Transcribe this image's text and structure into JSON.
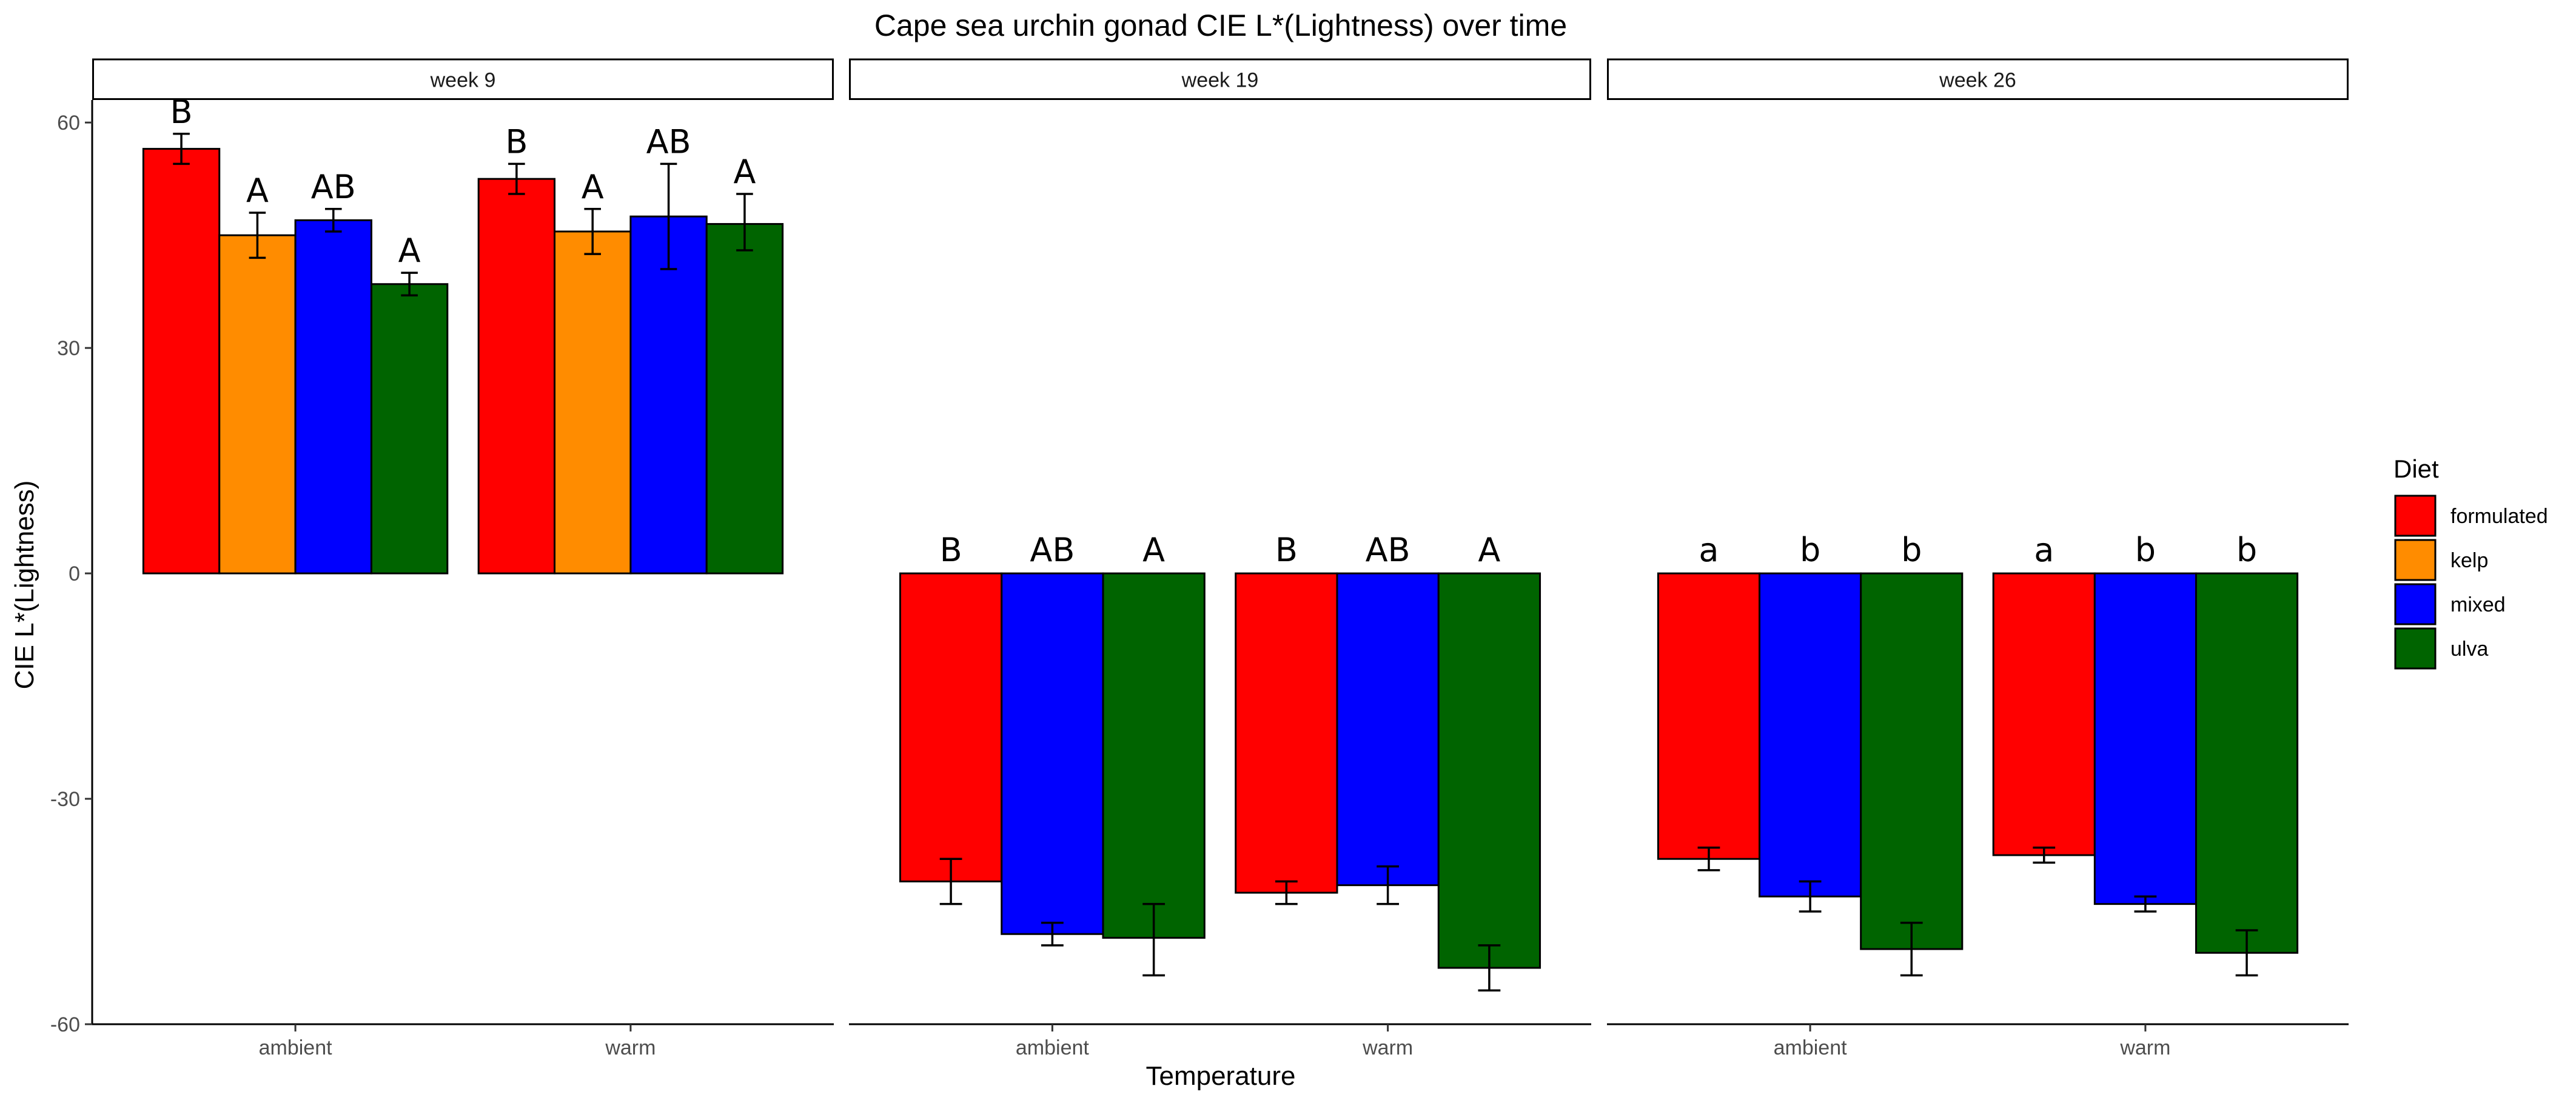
{
  "chart_data": {
    "type": "bar",
    "title": "Cape sea urchin gonad CIE L*(Lightness) over time",
    "xlabel": "Temperature",
    "ylabel": "CIE L*(Lightness)",
    "ylim": [
      -60,
      63
    ],
    "yticks": [
      60,
      30,
      0,
      -30,
      -60
    ],
    "ytick_labels": [
      "60",
      "30",
      "0",
      "-30",
      "-60"
    ],
    "grid": false,
    "legend": {
      "title": "Diet",
      "position": "right",
      "items": [
        {
          "label": "formulated",
          "color": "#FF0000"
        },
        {
          "label": "kelp",
          "color": "#FF8C00"
        },
        {
          "label": "mixed",
          "color": "#0000FF"
        },
        {
          "label": "ulva",
          "color": "#006400"
        }
      ]
    },
    "panels": [
      {
        "label": "week 9",
        "categories": [
          "ambient",
          "warm"
        ],
        "diets": [
          "formulated",
          "kelp",
          "mixed",
          "ulva"
        ],
        "groups": [
          {
            "temperature": "ambient",
            "bars": [
              {
                "diet": "formulated",
                "value": 56.5,
                "err_low": 54.5,
                "err_high": 58.5,
                "letter": "B"
              },
              {
                "diet": "kelp",
                "value": 45.0,
                "err_low": 42.0,
                "err_high": 48.0,
                "letter": "A"
              },
              {
                "diet": "mixed",
                "value": 47.0,
                "err_low": 45.5,
                "err_high": 48.5,
                "letter": "AB"
              },
              {
                "diet": "ulva",
                "value": 38.5,
                "err_low": 37.0,
                "err_high": 40.0,
                "letter": "A"
              }
            ]
          },
          {
            "temperature": "warm",
            "bars": [
              {
                "diet": "formulated",
                "value": 52.5,
                "err_low": 50.5,
                "err_high": 54.5,
                "letter": "B"
              },
              {
                "diet": "kelp",
                "value": 45.5,
                "err_low": 42.5,
                "err_high": 48.5,
                "letter": "A"
              },
              {
                "diet": "mixed",
                "value": 47.5,
                "err_low": 40.5,
                "err_high": 54.5,
                "letter": "AB"
              },
              {
                "diet": "ulva",
                "value": 46.5,
                "err_low": 43.0,
                "err_high": 50.5,
                "letter": "A"
              }
            ]
          }
        ]
      },
      {
        "label": "week 19",
        "categories": [
          "ambient",
          "warm"
        ],
        "diets": [
          "formulated",
          "mixed",
          "ulva"
        ],
        "groups": [
          {
            "temperature": "ambient",
            "bars": [
              {
                "diet": "formulated",
                "value": -41.0,
                "err_low": -44.0,
                "err_high": -38.0,
                "letter": "B"
              },
              {
                "diet": "mixed",
                "value": -48.0,
                "err_low": -49.5,
                "err_high": -46.5,
                "letter": "AB"
              },
              {
                "diet": "ulva",
                "value": -48.5,
                "err_low": -53.5,
                "err_high": -44.0,
                "letter": "A"
              }
            ]
          },
          {
            "temperature": "warm",
            "bars": [
              {
                "diet": "formulated",
                "value": -42.5,
                "err_low": -44.0,
                "err_high": -41.0,
                "letter": "B"
              },
              {
                "diet": "mixed",
                "value": -41.5,
                "err_low": -44.0,
                "err_high": -39.0,
                "letter": "AB"
              },
              {
                "diet": "ulva",
                "value": -52.5,
                "err_low": -55.5,
                "err_high": -49.5,
                "letter": "A"
              }
            ]
          }
        ]
      },
      {
        "label": "week 26",
        "categories": [
          "ambient",
          "warm"
        ],
        "diets": [
          "formulated",
          "mixed",
          "ulva"
        ],
        "groups": [
          {
            "temperature": "ambient",
            "bars": [
              {
                "diet": "formulated",
                "value": -38.0,
                "err_low": -39.5,
                "err_high": -36.5,
                "letter": "a"
              },
              {
                "diet": "mixed",
                "value": -43.0,
                "err_low": -45.0,
                "err_high": -41.0,
                "letter": "b"
              },
              {
                "diet": "ulva",
                "value": -50.0,
                "err_low": -53.5,
                "err_high": -46.5,
                "letter": "b"
              }
            ]
          },
          {
            "temperature": "warm",
            "bars": [
              {
                "diet": "formulated",
                "value": -37.5,
                "err_low": -38.5,
                "err_high": -36.5,
                "letter": "a"
              },
              {
                "diet": "mixed",
                "value": -44.0,
                "err_low": -45.0,
                "err_high": -43.0,
                "letter": "b"
              },
              {
                "diet": "ulva",
                "value": -50.5,
                "err_low": -53.5,
                "err_high": -47.5,
                "letter": "b"
              }
            ]
          }
        ]
      }
    ]
  }
}
